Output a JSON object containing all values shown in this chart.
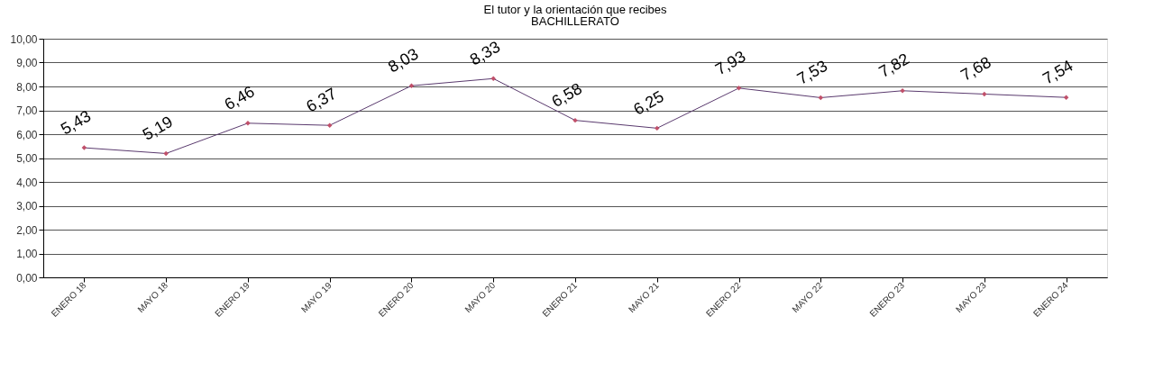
{
  "chart_data": {
    "type": "line",
    "title": "El tutor y la orientación que recibes",
    "subtitle": "BACHILLERATO",
    "categories": [
      "ENERO 18",
      "MAYO 18",
      "ENERO 19",
      "MAYO 19",
      "ENERO 20",
      "MAYO 20",
      "ENERO 21",
      "MAYO 21",
      "ENERO 22",
      "MAYO 22",
      "ENERO 23",
      "MAYO 23",
      "ENERO 24"
    ],
    "series": [
      {
        "color": "#5a3a6e",
        "values": [
          5.43,
          5.19,
          6.46,
          6.37,
          8.03,
          8.33,
          6.58,
          6.25,
          7.93,
          7.53,
          7.82,
          7.68,
          7.54
        ],
        "value_labels": [
          "5,43",
          "5,19",
          "6,46",
          "6,37",
          "8,03",
          "8,33",
          "6,58",
          "6,25",
          "7,93",
          "7,53",
          "7,82",
          "7,68",
          "7,54"
        ]
      }
    ],
    "ylim": [
      0,
      10
    ],
    "yticks": [
      {
        "value": 0,
        "label": "0,00"
      },
      {
        "value": 1,
        "label": "1,00"
      },
      {
        "value": 2,
        "label": "2,00"
      },
      {
        "value": 3,
        "label": "3,00"
      },
      {
        "value": 4,
        "label": "4,00"
      },
      {
        "value": 5,
        "label": "5,00"
      },
      {
        "value": 6,
        "label": "6,00"
      },
      {
        "value": 7,
        "label": "7,00"
      },
      {
        "value": 8,
        "label": "8,00"
      },
      {
        "value": 9,
        "label": "9,00"
      },
      {
        "value": 10,
        "label": "10,00"
      }
    ],
    "grid": "y",
    "marker": "diamond",
    "line_style": "solid"
  }
}
